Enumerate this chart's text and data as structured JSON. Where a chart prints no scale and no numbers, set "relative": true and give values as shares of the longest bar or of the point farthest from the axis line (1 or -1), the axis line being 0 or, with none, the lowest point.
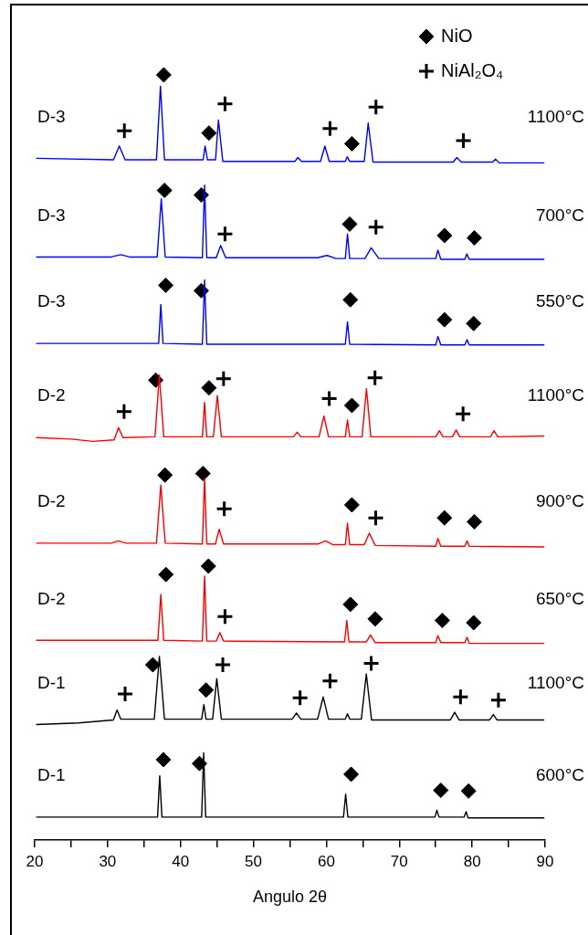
{
  "chart_data": {
    "type": "line",
    "relative": true,
    "xlabel": "Angulo 2θ",
    "xlim": [
      20,
      90
    ],
    "xticks": [
      20,
      {
        "value": 25,
        "label": null
      },
      30,
      {
        "value": 35,
        "label": null
      },
      40,
      {
        "value": 45,
        "label": null
      },
      50,
      {
        "value": 55,
        "label": null
      },
      60,
      {
        "value": 65,
        "label": null
      },
      70,
      {
        "value": 75,
        "label": null
      },
      80,
      {
        "value": 85,
        "label": null
      },
      90
    ],
    "legend": "top right",
    "series": [
      {
        "color": "#0000ff",
        "x": [
          20.2,
          30.8,
          31.6,
          32.4,
          36.7,
          37.25,
          37.8,
          43.1,
          43.37,
          43.7,
          44.8,
          45.2,
          45.8,
          55.7,
          56.1,
          56.6,
          59.2,
          59.8,
          60.4,
          62.6,
          62.86,
          63.2,
          65.2,
          65.74,
          66.4,
          77.4,
          77.9,
          78.5,
          82.8,
          83.2,
          83.7,
          89.9
        ],
        "values": [
          0.891,
          0.889,
          0.907,
          0.889,
          0.889,
          0.985,
          0.889,
          0.889,
          0.907,
          0.889,
          0.889,
          0.941,
          0.887,
          0.887,
          0.892,
          0.887,
          0.887,
          0.907,
          0.887,
          0.887,
          0.893,
          0.887,
          0.887,
          0.937,
          0.886,
          0.886,
          0.892,
          0.886,
          0.886,
          0.89,
          0.885,
          0.885
        ]
      },
      {
        "color": "#0000ff",
        "x": [
          20.2,
          30.5,
          31.8,
          33.0,
          36.8,
          37.36,
          37.9,
          43.0,
          43.3,
          43.6,
          44.9,
          45.5,
          46.2,
          58.8,
          60.1,
          61.3,
          62.6,
          62.9,
          63.2,
          65.3,
          66.15,
          67.2,
          75.0,
          75.3,
          75.7,
          79.0,
          79.27,
          79.6,
          89.9
        ],
        "values": [
          0.762,
          0.762,
          0.765,
          0.762,
          0.762,
          0.838,
          0.762,
          0.761,
          0.856,
          0.761,
          0.761,
          0.777,
          0.761,
          0.761,
          0.764,
          0.76,
          0.76,
          0.792,
          0.76,
          0.76,
          0.774,
          0.76,
          0.76,
          0.771,
          0.759,
          0.759,
          0.766,
          0.759,
          0.759
        ]
      },
      {
        "color": "#0000ff",
        "x": [
          20.2,
          37.0,
          37.3,
          37.6,
          43.0,
          43.3,
          43.6,
          62.6,
          62.9,
          63.2,
          75.0,
          75.3,
          75.7,
          79.0,
          79.3,
          79.6,
          89.9
        ],
        "values": [
          0.649,
          0.649,
          0.7,
          0.649,
          0.648,
          0.732,
          0.648,
          0.648,
          0.677,
          0.648,
          0.647,
          0.658,
          0.647,
          0.647,
          0.654,
          0.647,
          0.647
        ]
      },
      {
        "color": "#ff0000",
        "x": [
          20.2,
          25,
          28,
          30.9,
          31.5,
          32.1,
          36.5,
          37.1,
          37.7,
          43.0,
          43.3,
          43.6,
          44.5,
          45.05,
          45.6,
          55.5,
          56.0,
          56.5,
          59.0,
          59.67,
          60.3,
          62.6,
          62.9,
          63.2,
          64.9,
          65.5,
          66.1,
          75.0,
          75.5,
          76.0,
          77.3,
          77.8,
          78.3,
          82.5,
          83.0,
          83.5,
          89.9
        ],
        "values": [
          0.526,
          0.524,
          0.521,
          0.523,
          0.539,
          0.526,
          0.527,
          0.608,
          0.527,
          0.527,
          0.572,
          0.527,
          0.527,
          0.581,
          0.527,
          0.527,
          0.533,
          0.527,
          0.527,
          0.554,
          0.527,
          0.527,
          0.549,
          0.527,
          0.527,
          0.59,
          0.527,
          0.527,
          0.535,
          0.527,
          0.527,
          0.536,
          0.527,
          0.527,
          0.535,
          0.527,
          0.528
        ]
      },
      {
        "color": "#ff0000",
        "x": [
          20.2,
          30.5,
          31.5,
          32.5,
          36.7,
          37.3,
          37.9,
          43.0,
          43.3,
          43.6,
          44.8,
          45.3,
          45.9,
          58.9,
          59.9,
          60.9,
          62.6,
          62.9,
          63.2,
          65.2,
          65.9,
          66.7,
          75.0,
          75.3,
          75.7,
          79.0,
          79.3,
          79.6,
          89.9
        ],
        "values": [
          0.388,
          0.388,
          0.391,
          0.388,
          0.388,
          0.464,
          0.388,
          0.387,
          0.473,
          0.387,
          0.387,
          0.406,
          0.387,
          0.387,
          0.391,
          0.386,
          0.386,
          0.414,
          0.386,
          0.386,
          0.401,
          0.385,
          0.384,
          0.394,
          0.384,
          0.384,
          0.391,
          0.384,
          0.383
        ]
      },
      {
        "color": "#ff0000",
        "x": [
          20.2,
          36.9,
          37.3,
          37.7,
          43.0,
          43.3,
          43.6,
          44.9,
          45.4,
          45.9,
          62.5,
          62.8,
          63.1,
          65.5,
          66.05,
          66.7,
          75.0,
          75.3,
          75.7,
          79.0,
          79.3,
          79.6,
          89.9
        ],
        "values": [
          0.261,
          0.261,
          0.321,
          0.261,
          0.26,
          0.345,
          0.26,
          0.26,
          0.271,
          0.26,
          0.259,
          0.287,
          0.259,
          0.259,
          0.268,
          0.258,
          0.258,
          0.267,
          0.258,
          0.258,
          0.265,
          0.257,
          0.257
        ]
      },
      {
        "color": "#000000",
        "x": [
          20.2,
          26,
          30.8,
          31.3,
          31.8,
          36.4,
          37.1,
          37.8,
          42.9,
          43.2,
          43.5,
          44.4,
          44.97,
          45.6,
          55.3,
          55.9,
          56.5,
          58.8,
          59.57,
          60.3,
          62.6,
          62.9,
          63.2,
          64.8,
          65.48,
          66.2,
          77.0,
          77.6,
          78.2,
          82.4,
          82.9,
          83.4,
          89.9
        ],
        "values": [
          0.151,
          0.153,
          0.157,
          0.17,
          0.158,
          0.158,
          0.24,
          0.158,
          0.158,
          0.177,
          0.158,
          0.158,
          0.211,
          0.158,
          0.158,
          0.166,
          0.158,
          0.158,
          0.187,
          0.158,
          0.158,
          0.165,
          0.158,
          0.158,
          0.217,
          0.157,
          0.157,
          0.167,
          0.157,
          0.157,
          0.164,
          0.157,
          0.157
        ]
      },
      {
        "color": "#000000",
        "x": [
          20.2,
          36.85,
          37.15,
          37.45,
          42.9,
          43.17,
          43.45,
          62.35,
          62.65,
          62.95,
          74.9,
          75.15,
          75.45,
          78.9,
          79.17,
          79.45,
          89.9
        ],
        "values": [
          0.03,
          0.03,
          0.084,
          0.03,
          0.03,
          0.114,
          0.03,
          0.03,
          0.06,
          0.03,
          0.03,
          0.039,
          0.03,
          0.03,
          0.037,
          0.029,
          0.029
        ]
      },
      {
        "type": "scatter",
        "name": "NiO",
        "color": "#000000",
        "marker": "diamond",
        "x": [
          37.7,
          43.9,
          63.5,
          37.8,
          42.85,
          63.2,
          76.2,
          80.3,
          37.97,
          42.85,
          63.3,
          76.2,
          80.2,
          36.6,
          43.9,
          63.5,
          37.87,
          43.07,
          63.5,
          76.2,
          80.3,
          38.0,
          43.83,
          63.3,
          66.7,
          75.9,
          80.2,
          36.2,
          43.5,
          37.66,
          42.6,
          63.4,
          75.7,
          79.5
        ],
        "values": [
          1,
          0.924,
          0.91,
          0.849,
          0.843,
          0.805,
          0.79,
          0.787,
          0.725,
          0.718,
          0.706,
          0.68,
          0.675,
          0.601,
          0.591,
          0.568,
          0.477,
          0.479,
          0.438,
          0.421,
          0.416,
          0.347,
          0.358,
          0.308,
          0.289,
          0.287,
          0.284,
          0.229,
          0.196,
          0.105,
          0.1,
          0.086,
          0.065,
          0.064
        ]
      },
      {
        "type": "scatter",
        "name": "NiAl₂O₄",
        "color": "#000000",
        "marker": "cross",
        "x": [
          32.3,
          46.1,
          60.5,
          66.8,
          78.8,
          46.1,
          66.8,
          32.26,
          45.9,
          60.4,
          66.67,
          78.75,
          46.0,
          66.77,
          46.1,
          32.4,
          45.8,
          56.4,
          60.5,
          66.15,
          78.4,
          83.6
        ],
        "values": [
          0.927,
          0.962,
          0.93,
          0.958,
          0.914,
          0.792,
          0.801,
          0.56,
          0.603,
          0.577,
          0.604,
          0.557,
          0.433,
          0.421,
          0.292,
          0.191,
          0.229,
          0.186,
          0.208,
          0.231,
          0.187,
          0.183
        ]
      }
    ],
    "annotations": [
      "D-3",
      "1100°C",
      "D-3",
      "700°C",
      "D-3",
      "550°C",
      "D-2",
      "1100°C",
      "D-2",
      "900°C",
      "D-2",
      "650°C",
      "D-1",
      "1100°C",
      "D-1",
      "600°C"
    ]
  }
}
